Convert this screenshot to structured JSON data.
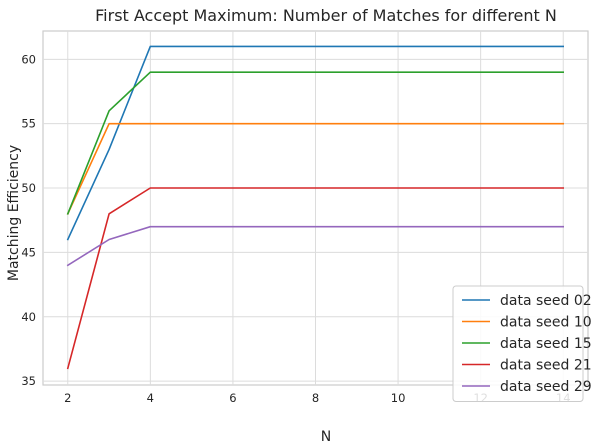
{
  "chart_data": {
    "type": "line",
    "title": "First Accept Maximum: Number of Matches for different N",
    "xlabel": "N",
    "ylabel": "Matching Efficiency",
    "x": [
      2,
      3,
      4,
      5,
      6,
      7,
      8,
      9,
      10,
      11,
      12,
      13,
      14
    ],
    "xlim": [
      1.4,
      14.6
    ],
    "ylim": [
      34.7,
      62.2
    ],
    "xticks": [
      2,
      4,
      6,
      8,
      10,
      12,
      14
    ],
    "yticks": [
      35,
      40,
      45,
      50,
      55,
      60
    ],
    "grid": true,
    "legend_position": "lower-right",
    "series": [
      {
        "name": "data seed 02",
        "color": "#1f77b4",
        "values": [
          46,
          53,
          61,
          61,
          61,
          61,
          61,
          61,
          61,
          61,
          61,
          61,
          61
        ]
      },
      {
        "name": "data seed 10",
        "color": "#ff7f0e",
        "values": [
          48,
          55,
          55,
          55,
          55,
          55,
          55,
          55,
          55,
          55,
          55,
          55,
          55
        ]
      },
      {
        "name": "data seed 15",
        "color": "#2ca02c",
        "values": [
          48,
          56,
          59,
          59,
          59,
          59,
          59,
          59,
          59,
          59,
          59,
          59,
          59
        ]
      },
      {
        "name": "data seed 21",
        "color": "#d62728",
        "values": [
          36,
          48,
          50,
          50,
          50,
          50,
          50,
          50,
          50,
          50,
          50,
          50,
          50
        ]
      },
      {
        "name": "data seed 29",
        "color": "#9467bd",
        "values": [
          44,
          46,
          47,
          47,
          47,
          47,
          47,
          47,
          47,
          47,
          47,
          47,
          47
        ]
      }
    ]
  }
}
